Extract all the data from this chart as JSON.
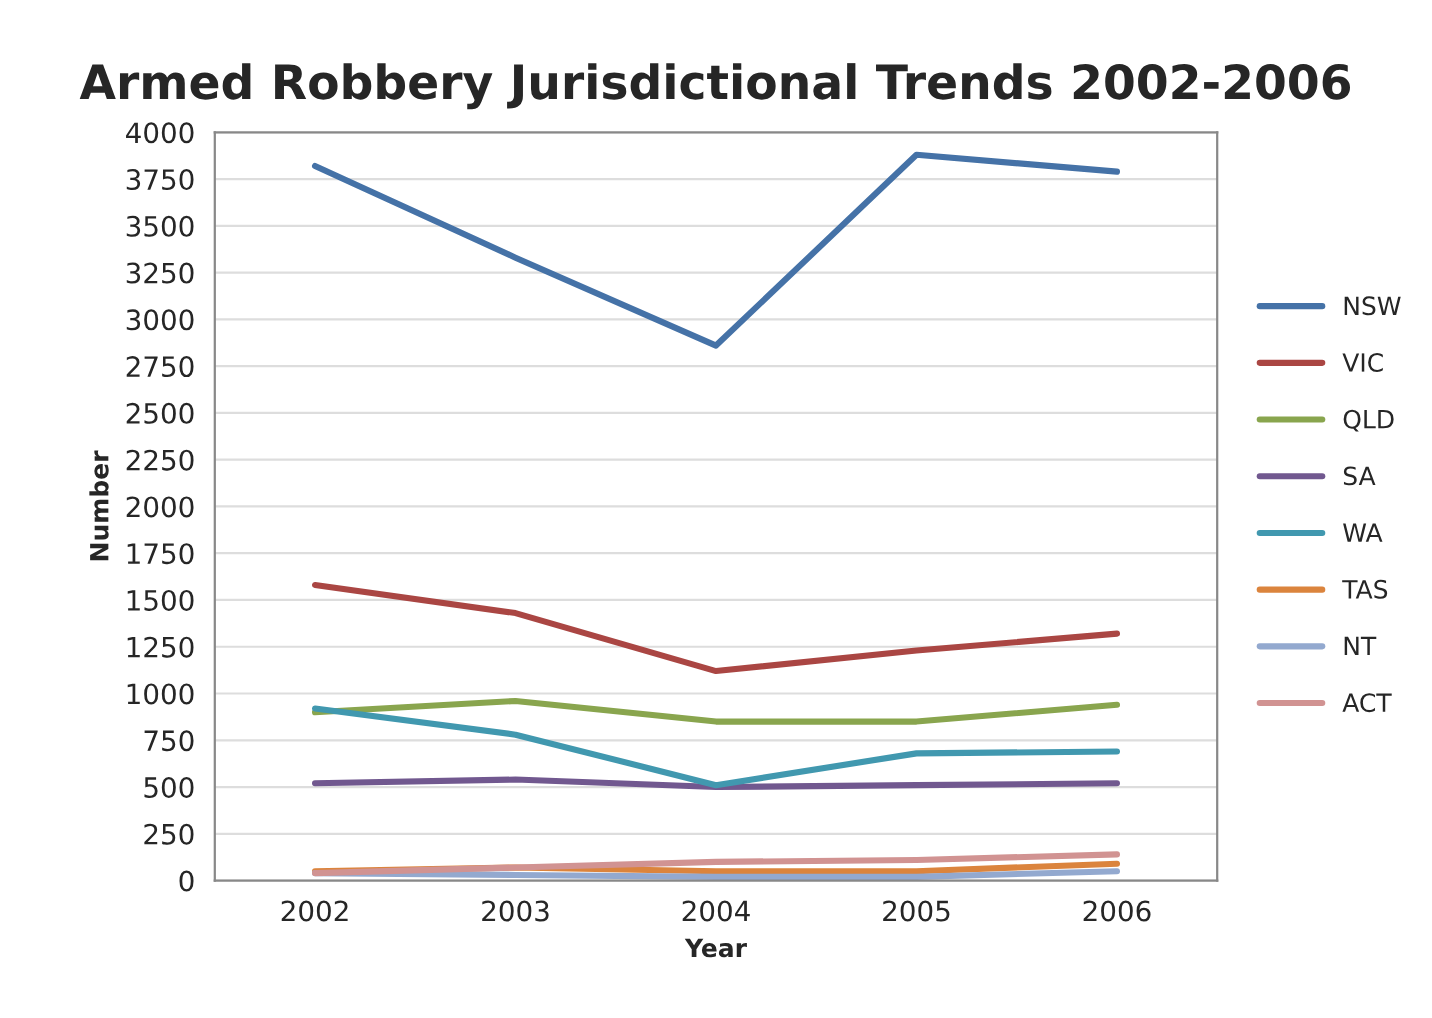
{
  "chart_data": {
    "type": "line",
    "title": "Armed Robbery Jurisdictional Trends 2002-2006",
    "xlabel": "Year",
    "ylabel": "Number",
    "categories": [
      "2002",
      "2003",
      "2004",
      "2005",
      "2006"
    ],
    "series": [
      {
        "name": "NSW",
        "color": "#4572a7",
        "values": [
          3820,
          3330,
          2860,
          3880,
          3790
        ]
      },
      {
        "name": "VIC",
        "color": "#aa4643",
        "values": [
          1580,
          1430,
          1120,
          1230,
          1320
        ]
      },
      {
        "name": "QLD",
        "color": "#89a54e",
        "values": [
          900,
          960,
          850,
          850,
          940
        ]
      },
      {
        "name": "SA",
        "color": "#71588f",
        "values": [
          520,
          540,
          500,
          510,
          520
        ]
      },
      {
        "name": "WA",
        "color": "#4198af",
        "values": [
          920,
          780,
          510,
          680,
          690
        ]
      },
      {
        "name": "TAS",
        "color": "#db843d",
        "values": [
          50,
          70,
          50,
          50,
          90
        ]
      },
      {
        "name": "NT",
        "color": "#93a9cf",
        "values": [
          40,
          30,
          20,
          20,
          50
        ]
      },
      {
        "name": "ACT",
        "color": "#d19392",
        "values": [
          40,
          70,
          100,
          110,
          140
        ]
      }
    ],
    "ylim": [
      0,
      4000
    ],
    "yticks": [
      0,
      250,
      500,
      750,
      1000,
      1250,
      1500,
      1750,
      2000,
      2250,
      2500,
      2750,
      3000,
      3250,
      3500,
      3750,
      4000
    ],
    "grid": "y",
    "legend": "right",
    "marker": "none",
    "line_style": "solid"
  }
}
